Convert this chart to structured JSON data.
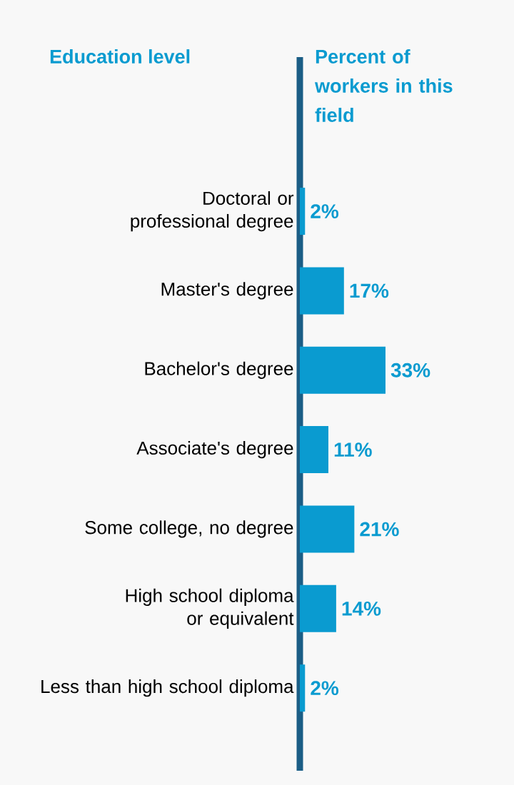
{
  "chart_data": {
    "type": "bar",
    "orientation": "horizontal",
    "title": "Education level",
    "xlabel": "Percent of workers in this field",
    "categories": [
      "Doctoral or professional degree",
      "Master's degree",
      "Bachelor's degree",
      "Associate's degree",
      "Some college, no degree",
      "High school diploma or equivalent",
      "Less than high school diploma"
    ],
    "values": [
      2,
      17,
      33,
      11,
      21,
      14,
      2
    ],
    "value_labels": [
      "2%",
      "17%",
      "33%",
      "11%",
      "21%",
      "14%",
      "2%"
    ],
    "color": "#0a9bd0",
    "tick_labels": "y"
  }
}
